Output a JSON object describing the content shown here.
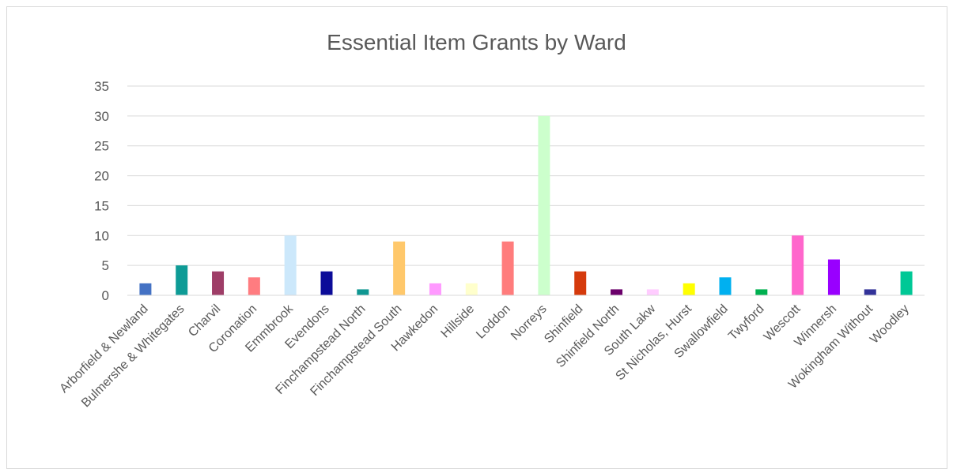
{
  "chart_data": {
    "type": "bar",
    "title": "Essential Item Grants by Ward",
    "xlabel": "",
    "ylabel": "",
    "ylim": [
      0,
      35
    ],
    "yticks": [
      0,
      5,
      10,
      15,
      20,
      25,
      30,
      35
    ],
    "grid": true,
    "legend": "none",
    "categories": [
      "Arborfield & Newland",
      "Bulmershe & Whitegates",
      "Charvil",
      "Coronation",
      "Emmbrook",
      "Evendons",
      "Finchampstead North",
      "Finchampstead South",
      "Hawkedon",
      "Hillside",
      "Loddon",
      "Norreys",
      "Shinfield",
      "Shinfield North",
      "South Lakw",
      "St Nicholas, Hurst",
      "Swallowfield",
      "Twyford",
      "Wescott",
      "Winnersh",
      "Wokingham Without",
      "Woodley"
    ],
    "values": [
      2,
      5,
      4,
      3,
      10,
      4,
      1,
      9,
      2,
      2,
      9,
      30,
      4,
      1,
      1,
      2,
      3,
      1,
      10,
      6,
      1,
      4
    ],
    "colors": [
      "#4472c4",
      "#0e9b96",
      "#9e3d67",
      "#ff7c80",
      "#cce8fb",
      "#0c0c99",
      "#109792",
      "#ffc86b",
      "#ff99ff",
      "#ffffcc",
      "#ff7c7c",
      "#ccffcc",
      "#d53a0c",
      "#6b006b",
      "#ffccff",
      "#ffff00",
      "#00b0f0",
      "#00b050",
      "#ff66cc",
      "#9900ff",
      "#333399",
      "#00c896"
    ],
    "grid_color": "#d9d9d9",
    "text_color": "#595959"
  }
}
